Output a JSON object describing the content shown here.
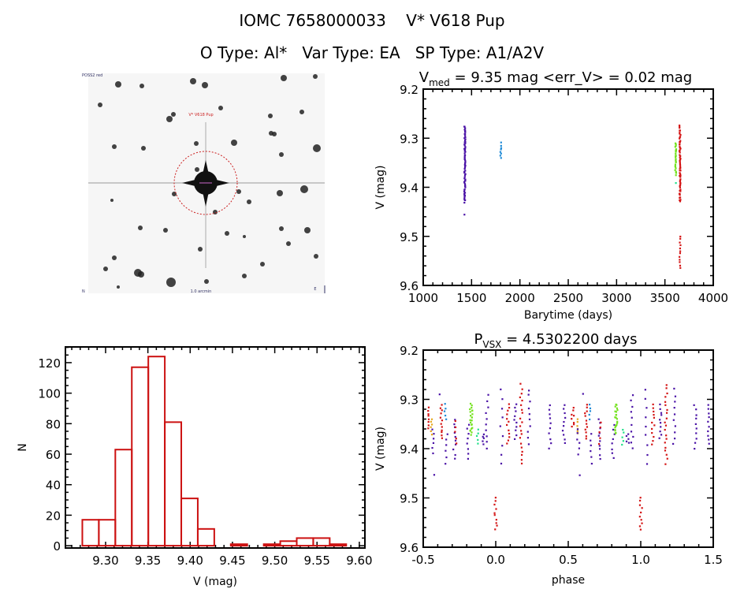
{
  "header": {
    "line1": "IOMC 7658000033    V* V618 Pup",
    "line2": "O Type: Al*   Var Type: EA   SP Type: A1/A2V"
  },
  "sky_image": {
    "top_left_label": "POSS2 red",
    "target_label": "V* V618 Pup",
    "bottom_label": "1.0 arcmin",
    "bottom_left_label": "N",
    "compass": "E"
  },
  "colors": {
    "purple": "#4a12a6",
    "red": "#d41515",
    "blue": "#1f8ad6",
    "green": "#74e21e",
    "teal": "#22e08a",
    "orange": "#e6a81e",
    "hist": "#cc1111"
  },
  "chart_data": [
    {
      "id": "lightcurve",
      "type": "scatter",
      "title_main": "V",
      "title_sub": "med",
      "title_rest": " = 9.35 mag <err_V> = 0.02 mag",
      "xlabel": "Barytime (days)",
      "ylabel": "V (mag)",
      "xlim": [
        1000,
        4000
      ],
      "ylim": [
        9.2,
        9.6
      ],
      "y_inverted": true,
      "xticks": [
        "1000",
        "1500",
        "2000",
        "2500",
        "3000",
        "3500",
        "4000"
      ],
      "yticks": [
        "9.2",
        "9.3",
        "9.4",
        "9.5",
        "9.6"
      ],
      "groups": [
        {
          "t": 1430,
          "vmin": 9.275,
          "vmax": 9.43,
          "n": 70,
          "color": "purple"
        },
        {
          "t": 1430,
          "vmin": 9.455,
          "vmax": 9.455,
          "n": 1,
          "color": "purple"
        },
        {
          "t": 1800,
          "vmin": 9.31,
          "vmax": 9.34,
          "n": 8,
          "color": "blue"
        },
        {
          "t": 3610,
          "vmin": 9.31,
          "vmax": 9.375,
          "n": 25,
          "color": "green"
        },
        {
          "t": 3610,
          "vmin": 9.39,
          "vmax": 9.39,
          "n": 1,
          "color": "teal"
        },
        {
          "t": 3655,
          "vmin": 9.275,
          "vmax": 9.43,
          "n": 60,
          "color": "red"
        },
        {
          "t": 3655,
          "vmin": 9.5,
          "vmax": 9.565,
          "n": 12,
          "color": "red"
        }
      ]
    },
    {
      "id": "phased",
      "type": "scatter",
      "title_main": "P",
      "title_sub": "VSX",
      "title_rest": " = 4.5302200 days",
      "xlabel": "phase",
      "ylabel": "V (mag)",
      "xlim": [
        -0.5,
        1.5
      ],
      "ylim": [
        9.2,
        9.6
      ],
      "y_inverted": true,
      "period_days": 4.53022,
      "xticks": [
        "-0.5",
        "0.0",
        "0.5",
        "1.0",
        "1.5"
      ],
      "yticks": [
        "9.2",
        "9.3",
        "9.4",
        "9.5",
        "9.6"
      ],
      "groups": [
        {
          "phase": 0.53,
          "vmin": 9.318,
          "vmax": 9.357,
          "n": 8,
          "color": "red"
        },
        {
          "phase": 0.56,
          "vmin": 9.34,
          "vmax": 9.37,
          "n": 6,
          "color": "orange"
        },
        {
          "phase": 0.57,
          "vmin": 9.36,
          "vmax": 9.41,
          "n": 6,
          "color": "purple"
        },
        {
          "phase": 0.57,
          "vmin": 9.455,
          "vmax": 9.455,
          "n": 1,
          "color": "purple"
        },
        {
          "phase": 0.61,
          "vmin": 9.29,
          "vmax": 9.29,
          "n": 1,
          "color": "purple"
        },
        {
          "phase": 0.623,
          "vmin": 9.31,
          "vmax": 9.38,
          "n": 12,
          "color": "red"
        },
        {
          "phase": 0.65,
          "vmin": 9.31,
          "vmax": 9.34,
          "n": 5,
          "color": "blue"
        },
        {
          "phase": 0.66,
          "vmin": 9.37,
          "vmax": 9.43,
          "n": 6,
          "color": "purple"
        },
        {
          "phase": 0.714,
          "vmin": 9.34,
          "vmax": 9.42,
          "n": 10,
          "color": "purple"
        },
        {
          "phase": 0.72,
          "vmin": 9.345,
          "vmax": 9.39,
          "n": 5,
          "color": "red"
        },
        {
          "phase": 0.81,
          "vmin": 9.35,
          "vmax": 9.42,
          "n": 8,
          "color": "purple"
        },
        {
          "phase": 0.83,
          "vmin": 9.31,
          "vmax": 9.37,
          "n": 22,
          "color": "green"
        },
        {
          "phase": 0.875,
          "vmin": 9.36,
          "vmax": 9.39,
          "n": 5,
          "color": "teal"
        },
        {
          "phase": 0.91,
          "vmin": 9.37,
          "vmax": 9.39,
          "n": 5,
          "color": "purple"
        },
        {
          "phase": 0.94,
          "vmin": 9.29,
          "vmax": 9.4,
          "n": 10,
          "color": "purple"
        },
        {
          "phase": 0.0,
          "vmin": 9.5,
          "vmax": 9.565,
          "n": 10,
          "color": "red"
        },
        {
          "phase": 0.04,
          "vmin": 9.28,
          "vmax": 9.43,
          "n": 9,
          "color": "purple"
        },
        {
          "phase": 0.085,
          "vmin": 9.31,
          "vmax": 9.39,
          "n": 12,
          "color": "red"
        },
        {
          "phase": 0.135,
          "vmin": 9.31,
          "vmax": 9.38,
          "n": 10,
          "color": "purple"
        },
        {
          "phase": 0.175,
          "vmin": 9.27,
          "vmax": 9.43,
          "n": 20,
          "color": "red"
        },
        {
          "phase": 0.23,
          "vmin": 9.28,
          "vmax": 9.39,
          "n": 10,
          "color": "purple"
        },
        {
          "phase": 0.375,
          "vmin": 9.31,
          "vmax": 9.4,
          "n": 10,
          "color": "purple"
        },
        {
          "phase": 0.47,
          "vmin": 9.31,
          "vmax": 9.39,
          "n": 10,
          "color": "purple"
        }
      ]
    },
    {
      "id": "histogram",
      "type": "bar",
      "xlabel": "V (mag)",
      "ylabel": "N",
      "xlim": [
        9.2525,
        9.6066
      ],
      "ylim": [
        -1.5,
        130.3
      ],
      "xticks": [
        "9.30",
        "9.35",
        "9.40",
        "9.45",
        "9.50",
        "9.55",
        "9.60"
      ],
      "yticks": [
        "0",
        "20",
        "40",
        "60",
        "80",
        "100",
        "120"
      ],
      "bin_start": 9.2725,
      "bin_width": 0.0195,
      "counts": [
        17,
        17,
        63,
        117,
        124,
        81,
        31,
        11,
        0,
        1,
        0,
        1,
        3,
        5,
        5,
        1
      ]
    }
  ]
}
